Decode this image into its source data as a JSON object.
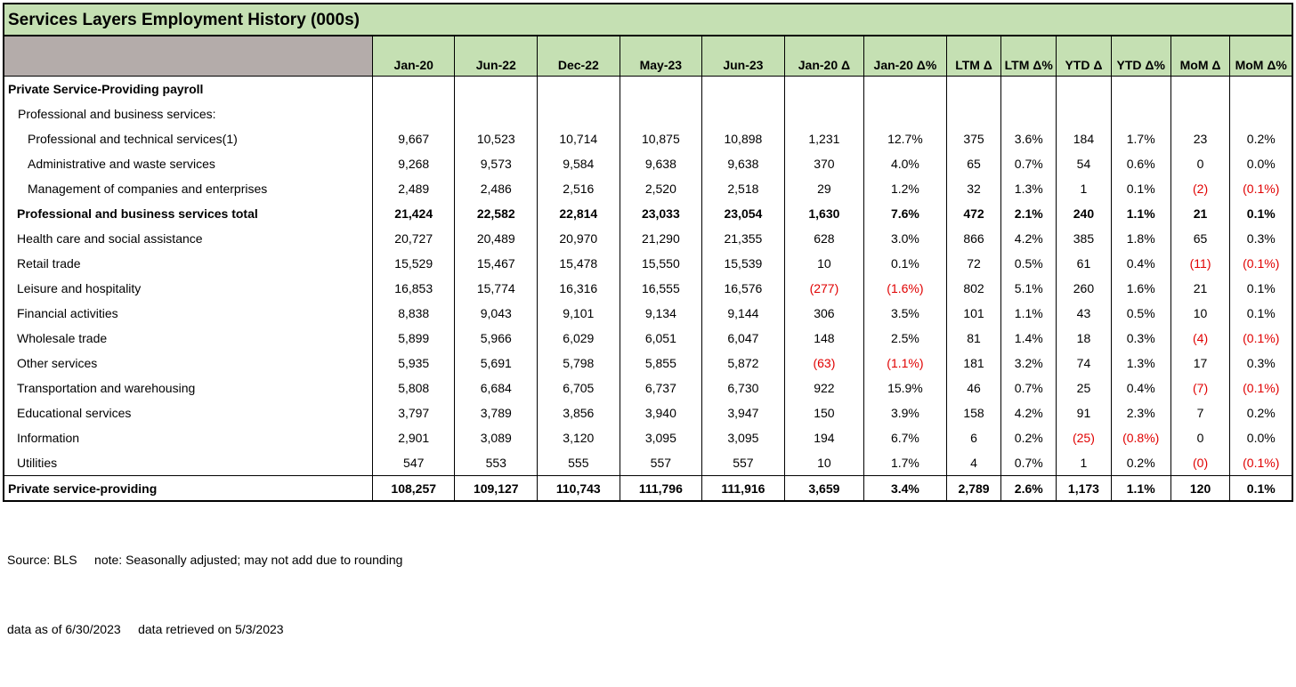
{
  "title": "Services Layers Employment History (000s)",
  "columns": [
    "Jan-20",
    "Jun-22",
    "Dec-22",
    "May-23",
    "Jun-23",
    "Jan-20 Δ",
    "Jan-20 Δ%",
    "LTM Δ",
    "LTM Δ%",
    "YTD Δ",
    "YTD Δ%",
    "MoM Δ",
    "MoM Δ%"
  ],
  "rows": [
    {
      "label": "Private Service-Providing payroll",
      "level": 0,
      "bold": true,
      "values": [
        "",
        "",
        "",
        "",
        "",
        "",
        "",
        "",
        "",
        "",
        "",
        "",
        ""
      ]
    },
    {
      "label": "Professional and business services:",
      "level": 1,
      "bold": false,
      "values": [
        "",
        "",
        "",
        "",
        "",
        "",
        "",
        "",
        "",
        "",
        "",
        "",
        ""
      ]
    },
    {
      "label": "Professional and technical services(1)",
      "level": 2,
      "bold": false,
      "values": [
        "9,667",
        "10,523",
        "10,714",
        "10,875",
        "10,898",
        "1,231",
        "12.7%",
        "375",
        "3.6%",
        "184",
        "1.7%",
        "23",
        "0.2%"
      ]
    },
    {
      "label": "Administrative and waste services",
      "level": 2,
      "bold": false,
      "values": [
        "9,268",
        "9,573",
        "9,584",
        "9,638",
        "9,638",
        "370",
        "4.0%",
        "65",
        "0.7%",
        "54",
        "0.6%",
        "0",
        "0.0%"
      ]
    },
    {
      "label": "Management of companies and enterprises",
      "level": 2,
      "bold": false,
      "values": [
        "2,489",
        "2,486",
        "2,516",
        "2,520",
        "2,518",
        "29",
        "1.2%",
        "32",
        "1.3%",
        "1",
        "0.1%",
        "(2)",
        "(0.1%)"
      ]
    },
    {
      "label": "Professional and business services total",
      "level": 3,
      "bold": true,
      "values": [
        "21,424",
        "22,582",
        "22,814",
        "23,033",
        "23,054",
        "1,630",
        "7.6%",
        "472",
        "2.1%",
        "240",
        "1.1%",
        "21",
        "0.1%"
      ]
    },
    {
      "label": "Health care and social assistance",
      "level": 3,
      "bold": false,
      "values": [
        "20,727",
        "20,489",
        "20,970",
        "21,290",
        "21,355",
        "628",
        "3.0%",
        "866",
        "4.2%",
        "385",
        "1.8%",
        "65",
        "0.3%"
      ]
    },
    {
      "label": "Retail trade",
      "level": 3,
      "bold": false,
      "values": [
        "15,529",
        "15,467",
        "15,478",
        "15,550",
        "15,539",
        "10",
        "0.1%",
        "72",
        "0.5%",
        "61",
        "0.4%",
        "(11)",
        "(0.1%)"
      ]
    },
    {
      "label": "Leisure and hospitality",
      "level": 3,
      "bold": false,
      "values": [
        "16,853",
        "15,774",
        "16,316",
        "16,555",
        "16,576",
        "(277)",
        "(1.6%)",
        "802",
        "5.1%",
        "260",
        "1.6%",
        "21",
        "0.1%"
      ]
    },
    {
      "label": "Financial activities",
      "level": 3,
      "bold": false,
      "values": [
        "8,838",
        "9,043",
        "9,101",
        "9,134",
        "9,144",
        "306",
        "3.5%",
        "101",
        "1.1%",
        "43",
        "0.5%",
        "10",
        "0.1%"
      ]
    },
    {
      "label": "Wholesale trade",
      "level": 3,
      "bold": false,
      "values": [
        "5,899",
        "5,966",
        "6,029",
        "6,051",
        "6,047",
        "148",
        "2.5%",
        "81",
        "1.4%",
        "18",
        "0.3%",
        "(4)",
        "(0.1%)"
      ]
    },
    {
      "label": "Other services",
      "level": 3,
      "bold": false,
      "values": [
        "5,935",
        "5,691",
        "5,798",
        "5,855",
        "5,872",
        "(63)",
        "(1.1%)",
        "181",
        "3.2%",
        "74",
        "1.3%",
        "17",
        "0.3%"
      ]
    },
    {
      "label": "Transportation and warehousing",
      "level": 3,
      "bold": false,
      "values": [
        "5,808",
        "6,684",
        "6,705",
        "6,737",
        "6,730",
        "922",
        "15.9%",
        "46",
        "0.7%",
        "25",
        "0.4%",
        "(7)",
        "(0.1%)"
      ]
    },
    {
      "label": "Educational services",
      "level": 3,
      "bold": false,
      "values": [
        "3,797",
        "3,789",
        "3,856",
        "3,940",
        "3,947",
        "150",
        "3.9%",
        "158",
        "4.2%",
        "91",
        "2.3%",
        "7",
        "0.2%"
      ]
    },
    {
      "label": "Information",
      "level": 3,
      "bold": false,
      "values": [
        "2,901",
        "3,089",
        "3,120",
        "3,095",
        "3,095",
        "194",
        "6.7%",
        "6",
        "0.2%",
        "(25)",
        "(0.8%)",
        "0",
        "0.0%"
      ]
    },
    {
      "label": "Utilities",
      "level": 3,
      "bold": false,
      "values": [
        "547",
        "553",
        "555",
        "557",
        "557",
        "10",
        "1.7%",
        "4",
        "0.7%",
        "1",
        "0.2%",
        "(0)",
        "(0.1%)"
      ]
    },
    {
      "label": "Private service-providing",
      "level": 0,
      "bold": true,
      "total": true,
      "values": [
        "108,257",
        "109,127",
        "110,743",
        "111,796",
        "111,916",
        "3,659",
        "3.4%",
        "2,789",
        "2.6%",
        "1,173",
        "1.1%",
        "120",
        "0.1%"
      ]
    }
  ],
  "notes": {
    "source": "Source: BLS     note: Seasonally adjusted; may not add due to rounding",
    "dates": "data as of 6/30/2023     data retrieved on 5/3/2023"
  },
  "colors": {
    "header_green": "#c5e0b3",
    "header_gray": "#b4acaa",
    "negative": "#e00000"
  }
}
